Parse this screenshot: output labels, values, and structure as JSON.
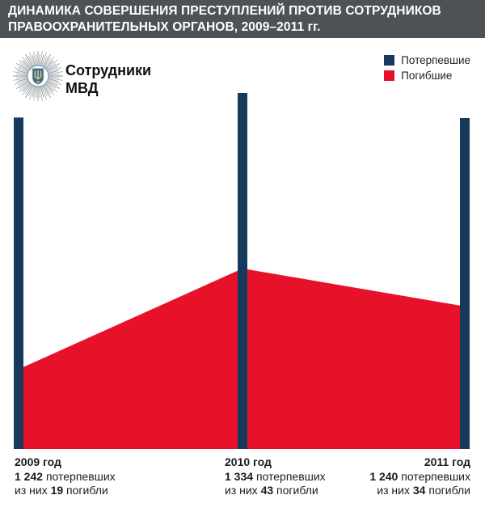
{
  "title": {
    "line1": "ДИНАМИКА СОВЕРШЕНИЯ ПРЕСТУПЛЕНИЙ ПРОТИВ СОТРУДНИКОВ",
    "line2": "ПРАВООХРАНИТЕЛЬНЫХ ОРГАНОВ, 2009–2011 гг."
  },
  "logo": {
    "icon": "mvd-badge-icon",
    "label_line1": "Сотрудники",
    "label_line2": "МВД"
  },
  "legend": {
    "items": [
      {
        "label": "Потерпевшие",
        "color": "#163A5C"
      },
      {
        "label": "Погибшие",
        "color": "#E8112A"
      }
    ]
  },
  "colors": {
    "title_bar_bg": "#4C5256",
    "title_text": "#FFFFFF",
    "bar_navy": "#163A5C",
    "area_red": "#E8112A",
    "body_text": "#1C1C1C"
  },
  "chart_data": {
    "type": "bar",
    "subtype": "bars-with-overlaid-area",
    "categories": [
      "2009",
      "2010",
      "2011"
    ],
    "series": [
      {
        "name": "Потерпевшие",
        "type": "bar",
        "color": "#163A5C",
        "values": [
          1242,
          1334,
          1240
        ]
      },
      {
        "name": "Погибшие",
        "type": "area",
        "color": "#E8112A",
        "values": [
          19,
          43,
          34
        ]
      }
    ],
    "title": "ДИНАМИКА СОВЕРШЕНИЯ ПРЕСТУПЛЕНИЙ ПРОТИВ СОТРУДНИКОВ ПРАВООХРАНИТЕЛЬНЫХ ОРГАНОВ, 2009–2011 гг.",
    "xlabel": "",
    "ylabel": "",
    "grid": false,
    "legend_position": "top-right",
    "axes_shown": false,
    "annotations": [
      {
        "year": "2009 год",
        "victims": "1 242",
        "victims_suffix": "потерпевших",
        "deaths_prefix": "из них",
        "deaths": "19",
        "deaths_suffix": "погибли"
      },
      {
        "year": "2010 год",
        "victims": "1 334",
        "victims_suffix": "потерпевших",
        "deaths_prefix": "из них",
        "deaths": "43",
        "deaths_suffix": "погибли"
      },
      {
        "year": "2011 год",
        "victims": "1 240",
        "victims_suffix": "потерпевших",
        "deaths_prefix": "из них",
        "deaths": "34",
        "deaths_suffix": "погибли"
      }
    ]
  }
}
